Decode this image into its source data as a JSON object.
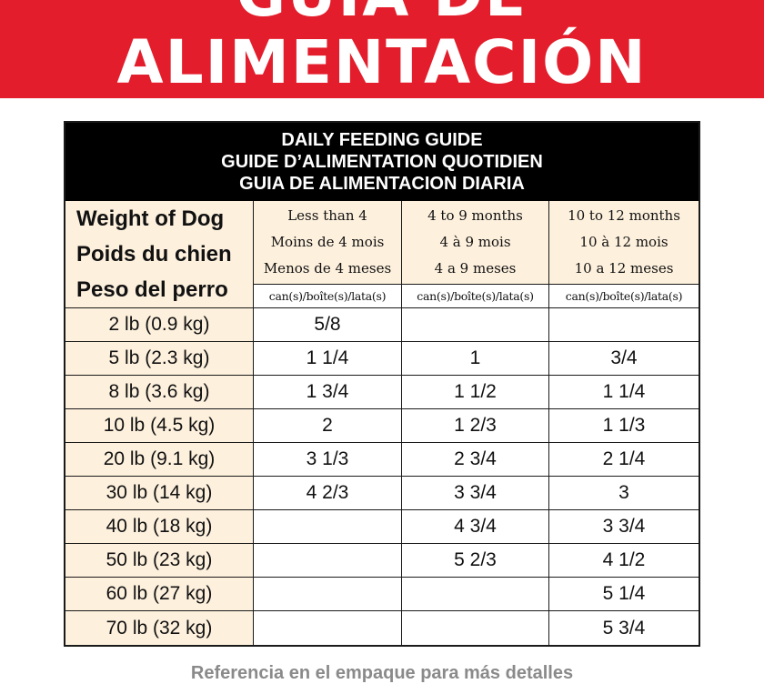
{
  "banner": {
    "line1": "GUÍA DE",
    "line2": "ALIMENTACIÓN"
  },
  "table": {
    "title": [
      "DAILY FEEDING GUIDE",
      "GUIDE D’ALIMENTATION QUOTIDIEN",
      "GUIA DE ALIMENTACION DIARIA"
    ],
    "weight_header": [
      "Weight of Dog",
      "Poids du chien",
      "Peso del perro"
    ],
    "age_columns": [
      {
        "lines": [
          "Less than 4",
          "Moins de 4 mois",
          "Menos de 4 meses"
        ],
        "unit": "can(s)/boîte(s)/lata(s)"
      },
      {
        "lines": [
          "4 to 9 months",
          "4 à 9 mois",
          "4 a 9 meses"
        ],
        "unit": "can(s)/boîte(s)/lata(s)"
      },
      {
        "lines": [
          "10 to 12 months",
          "10 à 12 mois",
          "10 a 12 meses"
        ],
        "unit": "can(s)/boîte(s)/lata(s)"
      }
    ],
    "rows": [
      {
        "weight": "2 lb (0.9 kg)",
        "values": [
          "5/8",
          "",
          ""
        ]
      },
      {
        "weight": "5 lb (2.3 kg)",
        "values": [
          "1 1/4",
          "1",
          "3/4"
        ]
      },
      {
        "weight": "8 lb (3.6 kg)",
        "values": [
          "1 3/4",
          "1 1/2",
          "1 1/4"
        ]
      },
      {
        "weight": "10 lb (4.5 kg)",
        "values": [
          "2",
          "1 2/3",
          "1 1/3"
        ]
      },
      {
        "weight": "20 lb (9.1 kg)",
        "values": [
          "3 1/3",
          "2 3/4",
          "2 1/4"
        ]
      },
      {
        "weight": "30 lb (14 kg)",
        "values": [
          "4 2/3",
          "3 3/4",
          "3"
        ]
      },
      {
        "weight": "40 lb (18 kg)",
        "values": [
          "",
          "4 3/4",
          "3 3/4"
        ]
      },
      {
        "weight": "50 lb (23 kg)",
        "values": [
          "",
          "5 2/3",
          "4 1/2"
        ]
      },
      {
        "weight": "60 lb (27 kg)",
        "values": [
          "",
          "",
          "5 1/4"
        ]
      },
      {
        "weight": "70 lb (32 kg)",
        "values": [
          "",
          "",
          "5 3/4"
        ]
      }
    ]
  },
  "footer": "Referencia en el empaque para más detalles"
}
